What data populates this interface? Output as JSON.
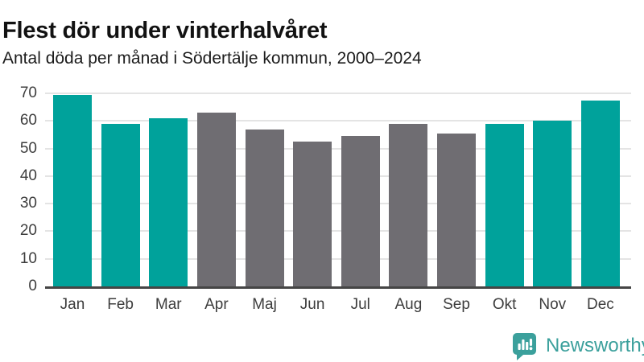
{
  "header": {
    "title": "Flest dör under vinterhalvåret",
    "subtitle": "Antal döda per månad i Södertälje kommun, 2000–2024"
  },
  "chart_data": {
    "type": "bar",
    "title": "Flest dör under vinterhalvåret",
    "subtitle": "Antal döda per månad i Södertälje kommun, 2000–2024",
    "categories": [
      "Jan",
      "Feb",
      "Mar",
      "Apr",
      "Maj",
      "Jun",
      "Jul",
      "Aug",
      "Sep",
      "Okt",
      "Nov",
      "Dec"
    ],
    "values": [
      69.5,
      59,
      61,
      63,
      57,
      52.5,
      54.5,
      59,
      55.5,
      59,
      60,
      67.5
    ],
    "bar_colors": [
      "#00a29b",
      "#00a29b",
      "#00a29b",
      "#6f6d72",
      "#6f6d72",
      "#6f6d72",
      "#6f6d72",
      "#6f6d72",
      "#6f6d72",
      "#00a29b",
      "#00a29b",
      "#00a29b"
    ],
    "highlight_color": "#00a29b",
    "base_color": "#6f6d72",
    "xlabel": "",
    "ylabel": "",
    "ylim": [
      0,
      70
    ],
    "yticks": [
      0,
      10,
      20,
      30,
      40,
      50,
      60,
      70
    ],
    "grid": true,
    "gridline_color": "#e4e4e4",
    "axis_color": "#454545",
    "tick_label_color": "#3d3d3d",
    "legend": false
  },
  "footer": {
    "brand": "Newsworthy",
    "brand_color": "#3ba09c",
    "logo_icon": "bar-chart-speech-bubble-icon"
  }
}
